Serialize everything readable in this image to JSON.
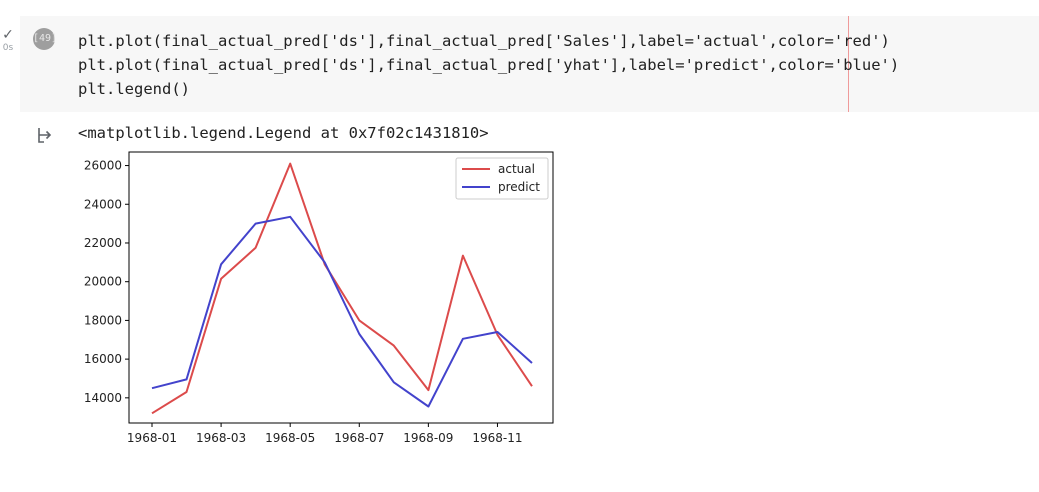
{
  "cell": {
    "status_mark": "✓",
    "duration": "0s",
    "run_label": "[49]",
    "code_lines": [
      "plt.plot(final_actual_pred['ds'],final_actual_pred['Sales'],label='actual',color='red')",
      "plt.plot(final_actual_pred['ds'],final_actual_pred['yhat'],label='predict',color='blue')",
      "plt.legend()"
    ]
  },
  "output": {
    "icon": "output-arrow-icon",
    "text": "<matplotlib.legend.Legend at 0x7f02c1431810>"
  },
  "chart_data": {
    "type": "line",
    "x": [
      "1968-01",
      "1968-02",
      "1968-03",
      "1968-04",
      "1968-05",
      "1968-06",
      "1968-07",
      "1968-08",
      "1968-09",
      "1968-10",
      "1968-11",
      "1968-12"
    ],
    "xticks": [
      "1968-01",
      "1968-03",
      "1968-05",
      "1968-07",
      "1968-09",
      "1968-11"
    ],
    "yticks": [
      "14000",
      "16000",
      "18000",
      "20000",
      "22000",
      "24000",
      "26000"
    ],
    "ylim": [
      12700,
      26700
    ],
    "legend_position": "upper-right",
    "grid": false,
    "series": [
      {
        "name": "actual",
        "color": "#dc4b4b",
        "values": [
          13200,
          14300,
          20150,
          21750,
          26100,
          20900,
          18000,
          16700,
          14400,
          21350,
          17250,
          14600
        ]
      },
      {
        "name": "predict",
        "color": "#4343cc",
        "values": [
          14500,
          14950,
          20900,
          23000,
          23350,
          21000,
          17300,
          14800,
          13550,
          17050,
          17400,
          15800
        ]
      }
    ]
  }
}
